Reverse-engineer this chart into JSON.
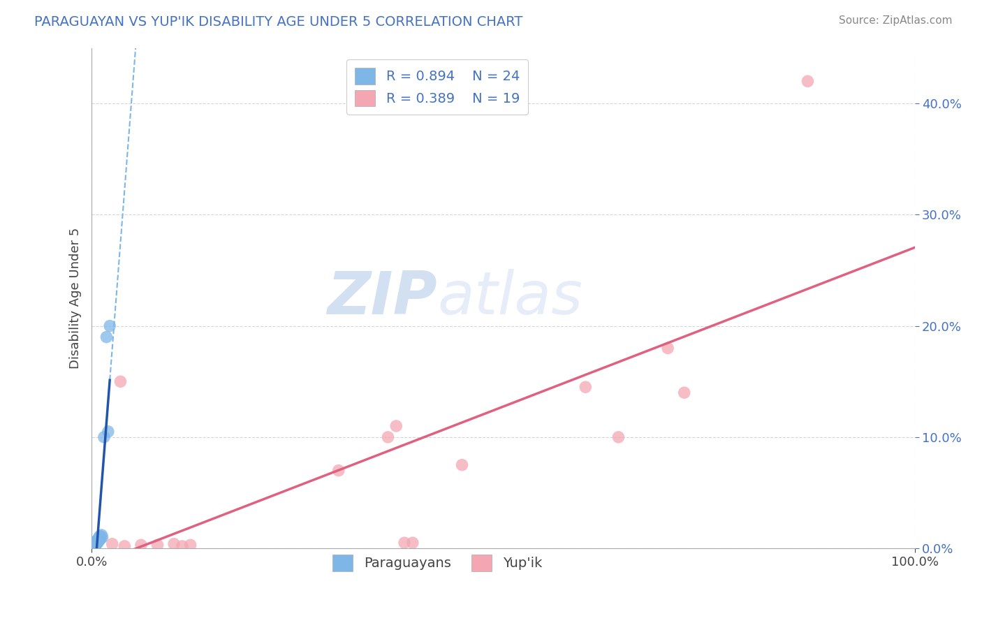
{
  "title": "PARAGUAYAN VS YUP'IK DISABILITY AGE UNDER 5 CORRELATION CHART",
  "source": "Source: ZipAtlas.com",
  "ylabel": "Disability Age Under 5",
  "xlabel": "",
  "xlim": [
    0.0,
    1.0
  ],
  "ylim": [
    0.0,
    0.45
  ],
  "yticks": [
    0.0,
    0.1,
    0.2,
    0.3,
    0.4
  ],
  "ytick_labels": [
    "0.0%",
    "10.0%",
    "20.0%",
    "30.0%",
    "40.0%"
  ],
  "xtick_labels": [
    "0.0%",
    "100.0%"
  ],
  "paraguayan_color": "#7eb6e8",
  "yupik_color": "#f4a7b3",
  "paraguayan_line_color": "#2255aa",
  "yupik_line_color": "#e06080",
  "title_color": "#4472c4",
  "watermark_zip": "ZIP",
  "watermark_atlas": "atlas",
  "paraguayan_R": 0.894,
  "paraguayan_N": 24,
  "yupik_R": 0.389,
  "yupik_N": 19,
  "paraguayan_scatter": [
    [
      0.003,
      0.002
    ],
    [
      0.004,
      0.003
    ],
    [
      0.004,
      0.004
    ],
    [
      0.005,
      0.003
    ],
    [
      0.005,
      0.005
    ],
    [
      0.005,
      0.006
    ],
    [
      0.006,
      0.004
    ],
    [
      0.006,
      0.005
    ],
    [
      0.006,
      0.007
    ],
    [
      0.007,
      0.005
    ],
    [
      0.007,
      0.007
    ],
    [
      0.008,
      0.006
    ],
    [
      0.008,
      0.008
    ],
    [
      0.009,
      0.007
    ],
    [
      0.009,
      0.01
    ],
    [
      0.01,
      0.008
    ],
    [
      0.01,
      0.011
    ],
    [
      0.011,
      0.009
    ],
    [
      0.012,
      0.012
    ],
    [
      0.013,
      0.01
    ],
    [
      0.015,
      0.1
    ],
    [
      0.018,
      0.19
    ],
    [
      0.02,
      0.105
    ],
    [
      0.022,
      0.2
    ]
  ],
  "yupik_scatter": [
    [
      0.025,
      0.004
    ],
    [
      0.035,
      0.15
    ],
    [
      0.04,
      0.002
    ],
    [
      0.06,
      0.003
    ],
    [
      0.08,
      0.003
    ],
    [
      0.1,
      0.004
    ],
    [
      0.11,
      0.002
    ],
    [
      0.12,
      0.003
    ],
    [
      0.3,
      0.07
    ],
    [
      0.36,
      0.1
    ],
    [
      0.37,
      0.11
    ],
    [
      0.38,
      0.005
    ],
    [
      0.39,
      0.005
    ],
    [
      0.45,
      0.075
    ],
    [
      0.6,
      0.145
    ],
    [
      0.64,
      0.1
    ],
    [
      0.7,
      0.18
    ],
    [
      0.72,
      0.14
    ],
    [
      0.87,
      0.42
    ]
  ],
  "background_color": "#ffffff",
  "grid_color": "#cccccc"
}
